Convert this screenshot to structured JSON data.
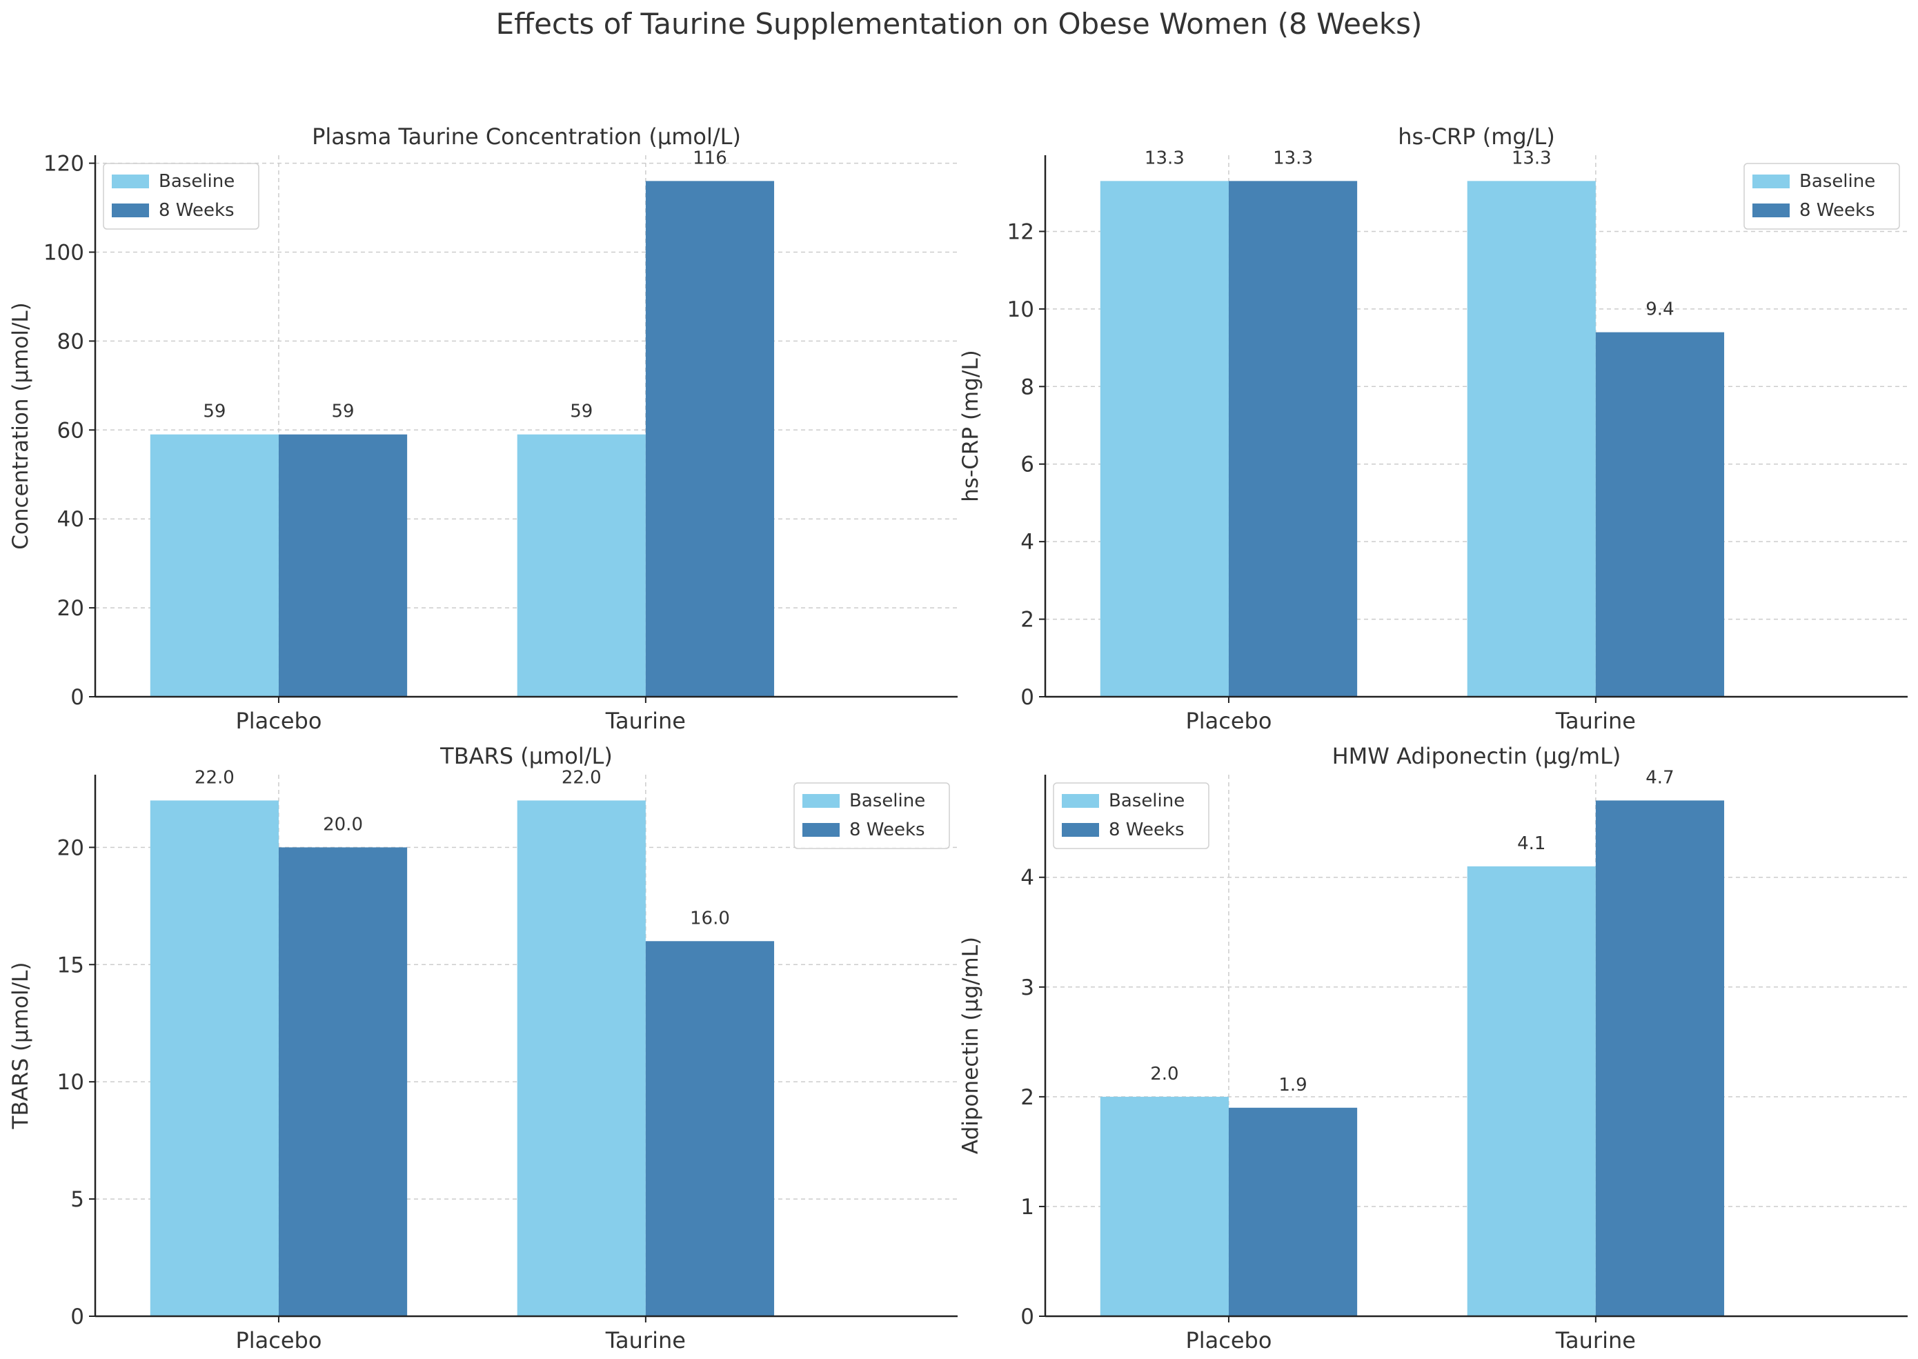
{
  "suptitle": "Effects of Taurine Supplementation on Obese Women (8 Weeks)",
  "colors": {
    "baseline": "#87CEEB",
    "weeks8": "#4682B4",
    "grid": "#cccccc",
    "axis": "#222222",
    "text": "#333333"
  },
  "chart_data": [
    {
      "type": "bar",
      "title": "Plasma Taurine Concentration (μmol/L)",
      "xlabel": "",
      "ylabel": "Concentration (μmol/L)",
      "categories": [
        "Placebo",
        "Taurine"
      ],
      "series": [
        {
          "name": "Baseline",
          "values": [
            59,
            59
          ],
          "labels": [
            "59",
            "59"
          ]
        },
        {
          "name": "8 Weeks",
          "values": [
            59,
            116
          ],
          "labels": [
            "59",
            "116"
          ]
        }
      ],
      "ylim": [
        0,
        121.8
      ],
      "yticks": [
        0,
        20,
        40,
        60,
        80,
        100,
        120
      ],
      "ytick_labels": [
        "0",
        "20",
        "40",
        "60",
        "80",
        "100",
        "120"
      ],
      "legend": "upper-left",
      "grid": true
    },
    {
      "type": "bar",
      "title": "hs-CRP (mg/L)",
      "xlabel": "",
      "ylabel": "hs-CRP (mg/L)",
      "categories": [
        "Placebo",
        "Taurine"
      ],
      "series": [
        {
          "name": "Baseline",
          "values": [
            13.3,
            13.3
          ],
          "labels": [
            "13.3",
            "13.3"
          ]
        },
        {
          "name": "8 Weeks",
          "values": [
            13.3,
            9.4
          ],
          "labels": [
            "13.3",
            "9.4"
          ]
        }
      ],
      "ylim": [
        0,
        13.965
      ],
      "yticks": [
        0,
        2,
        4,
        6,
        8,
        10,
        12
      ],
      "ytick_labels": [
        "0",
        "2",
        "4",
        "6",
        "8",
        "10",
        "12"
      ],
      "legend": "upper-right",
      "grid": true
    },
    {
      "type": "bar",
      "title": "TBARS (μmol/L)",
      "xlabel": "",
      "ylabel": "TBARS (μmol/L)",
      "categories": [
        "Placebo",
        "Taurine"
      ],
      "series": [
        {
          "name": "Baseline",
          "values": [
            22.0,
            22.0
          ],
          "labels": [
            "22.0",
            "22.0"
          ]
        },
        {
          "name": "8 Weeks",
          "values": [
            20.0,
            16.0
          ],
          "labels": [
            "20.0",
            "16.0"
          ]
        }
      ],
      "ylim": [
        0,
        23.1
      ],
      "yticks": [
        0,
        5,
        10,
        15,
        20
      ],
      "ytick_labels": [
        "0",
        "5",
        "10",
        "15",
        "20"
      ],
      "legend": "upper-right",
      "grid": true
    },
    {
      "type": "bar",
      "title": "HMW Adiponectin (μg/mL)",
      "xlabel": "",
      "ylabel": "Adiponectin (μg/mL)",
      "categories": [
        "Placebo",
        "Taurine"
      ],
      "series": [
        {
          "name": "Baseline",
          "values": [
            2.0,
            4.1
          ],
          "labels": [
            "2.0",
            "4.1"
          ]
        },
        {
          "name": "8 Weeks",
          "values": [
            1.9,
            4.7
          ],
          "labels": [
            "1.9",
            "4.7"
          ]
        }
      ],
      "ylim": [
        0,
        4.935
      ],
      "yticks": [
        0,
        1,
        2,
        3,
        4
      ],
      "ytick_labels": [
        "0",
        "1",
        "2",
        "3",
        "4"
      ],
      "legend": "upper-left",
      "grid": true
    }
  ]
}
